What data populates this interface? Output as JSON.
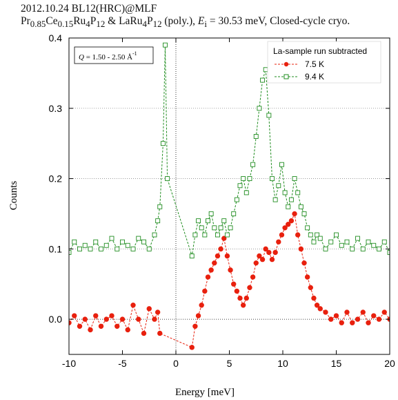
{
  "header": {
    "line1": "2012.10.24 BL12(HRC)@MLF",
    "line2": {
      "pr": "Pr",
      "pr_sub": "0.85",
      "ce": "Ce",
      "ce_sub": "0.15",
      "ru": "Ru",
      "ru_sub": "4",
      "p": "P",
      "p_sub": "12",
      "and_la": " & LaRu",
      "la_ru_sub": "4",
      "la_p": "P",
      "la_p_sub": "12",
      "poly": " (poly.), ",
      "e": "E",
      "e_sub": "i",
      "rest": " = 30.53 meV, Closed-cycle cryo."
    }
  },
  "annotation": {
    "q_label": "Q",
    "q_text": " = 1.50 - 2.50 Å",
    "q_exp": "-1"
  },
  "legend": {
    "title": "La-sample run subtracted"
  },
  "colors": {
    "red": "#e8200e",
    "green": "#1e8c1e",
    "axis": "#000000",
    "grid": "#888888"
  },
  "chart_data": {
    "type": "scatter",
    "xlabel": "Energy [meV]",
    "ylabel": "Counts",
    "xlim": [
      -10,
      20
    ],
    "ylim": [
      -0.05,
      0.4
    ],
    "xticks": [
      -10,
      -5,
      0,
      5,
      10,
      15,
      20
    ],
    "xtick_labels": [
      "-10",
      "-5",
      "0",
      "5",
      "10",
      "15",
      "20"
    ],
    "yticks": [
      0.0,
      0.1,
      0.2,
      0.3,
      0.4
    ],
    "ytick_labels": [
      "0.0",
      "0.1",
      "0.2",
      "0.3",
      "0.4"
    ],
    "grid": "dotted horizontal at 0.1, 0.2, 0.3; vertical dotted at x=0; horizontal dotted at y=0",
    "legend_position": "top-right",
    "series": [
      {
        "name": "7.5 K",
        "marker": "filled-circle",
        "line": "dashed",
        "color": "#e8200e",
        "x": [
          -10,
          -9.5,
          -9,
          -8.5,
          -8,
          -7.5,
          -7,
          -6.5,
          -6,
          -5.5,
          -5,
          -4.5,
          -4,
          -3.5,
          -3,
          -2.5,
          -2,
          -1.7,
          -1.5,
          1.5,
          1.8,
          2.1,
          2.4,
          2.7,
          3.0,
          3.3,
          3.6,
          3.9,
          4.2,
          4.5,
          4.8,
          5.1,
          5.4,
          5.7,
          6.0,
          6.3,
          6.6,
          6.9,
          7.2,
          7.5,
          7.8,
          8.1,
          8.4,
          8.7,
          9.0,
          9.3,
          9.6,
          9.9,
          10.2,
          10.5,
          10.8,
          11.1,
          11.4,
          11.7,
          12.0,
          12.3,
          12.6,
          12.9,
          13.2,
          13.5,
          14.0,
          14.5,
          15.0,
          15.5,
          16.0,
          16.5,
          17.0,
          17.5,
          18.0,
          18.5,
          19.0,
          19.5,
          20.0
        ],
        "y": [
          -0.005,
          0.005,
          -0.01,
          0.0,
          -0.015,
          0.005,
          -0.01,
          0.0,
          0.005,
          -0.01,
          0.0,
          -0.015,
          0.02,
          0.0,
          -0.02,
          0.015,
          0.0,
          0.01,
          -0.02,
          -0.04,
          -0.01,
          0.005,
          0.02,
          0.04,
          0.06,
          0.07,
          0.08,
          0.09,
          0.1,
          0.115,
          0.09,
          0.07,
          0.05,
          0.04,
          0.03,
          0.02,
          0.03,
          0.045,
          0.06,
          0.08,
          0.09,
          0.085,
          0.1,
          0.095,
          0.085,
          0.095,
          0.11,
          0.12,
          0.13,
          0.135,
          0.14,
          0.15,
          0.12,
          0.1,
          0.08,
          0.06,
          0.045,
          0.03,
          0.02,
          0.015,
          0.01,
          0.0,
          0.005,
          -0.005,
          0.01,
          -0.005,
          0.0,
          0.01,
          -0.005,
          0.005,
          0.0,
          0.01,
          0.0
        ]
      },
      {
        "name": "9.4 K",
        "marker": "open-square",
        "line": "dashed",
        "color": "#1e8c1e",
        "x": [
          -10,
          -9.5,
          -9,
          -8.5,
          -8,
          -7.5,
          -7,
          -6.5,
          -6,
          -5.5,
          -5,
          -4.5,
          -4,
          -3.5,
          -3,
          -2.5,
          -2,
          -1.7,
          -1.5,
          -1.2,
          -1.0,
          -0.8,
          1.5,
          1.8,
          2.1,
          2.4,
          2.7,
          3.0,
          3.3,
          3.6,
          3.9,
          4.2,
          4.5,
          4.8,
          5.1,
          5.4,
          5.7,
          6.0,
          6.3,
          6.6,
          6.9,
          7.2,
          7.5,
          7.8,
          8.1,
          8.4,
          8.7,
          9.0,
          9.3,
          9.6,
          9.9,
          10.2,
          10.5,
          10.8,
          11.1,
          11.4,
          11.7,
          12.0,
          12.3,
          12.6,
          12.9,
          13.2,
          13.5,
          14.0,
          14.5,
          15.0,
          15.5,
          16.0,
          16.5,
          17.0,
          17.5,
          18.0,
          18.5,
          19.0,
          19.5,
          20.0
        ],
        "y": [
          0.095,
          0.11,
          0.1,
          0.105,
          0.1,
          0.11,
          0.1,
          0.105,
          0.115,
          0.1,
          0.11,
          0.105,
          0.1,
          0.115,
          0.11,
          0.1,
          0.12,
          0.14,
          0.16,
          0.25,
          0.39,
          0.2,
          0.09,
          0.12,
          0.14,
          0.13,
          0.12,
          0.14,
          0.15,
          0.13,
          0.12,
          0.13,
          0.14,
          0.12,
          0.13,
          0.15,
          0.17,
          0.19,
          0.2,
          0.18,
          0.2,
          0.22,
          0.26,
          0.3,
          0.34,
          0.355,
          0.29,
          0.2,
          0.17,
          0.19,
          0.22,
          0.18,
          0.16,
          0.17,
          0.2,
          0.18,
          0.16,
          0.15,
          0.13,
          0.12,
          0.11,
          0.12,
          0.115,
          0.1,
          0.11,
          0.12,
          0.105,
          0.11,
          0.1,
          0.115,
          0.1,
          0.11,
          0.105,
          0.1,
          0.11,
          0.095
        ]
      }
    ]
  }
}
